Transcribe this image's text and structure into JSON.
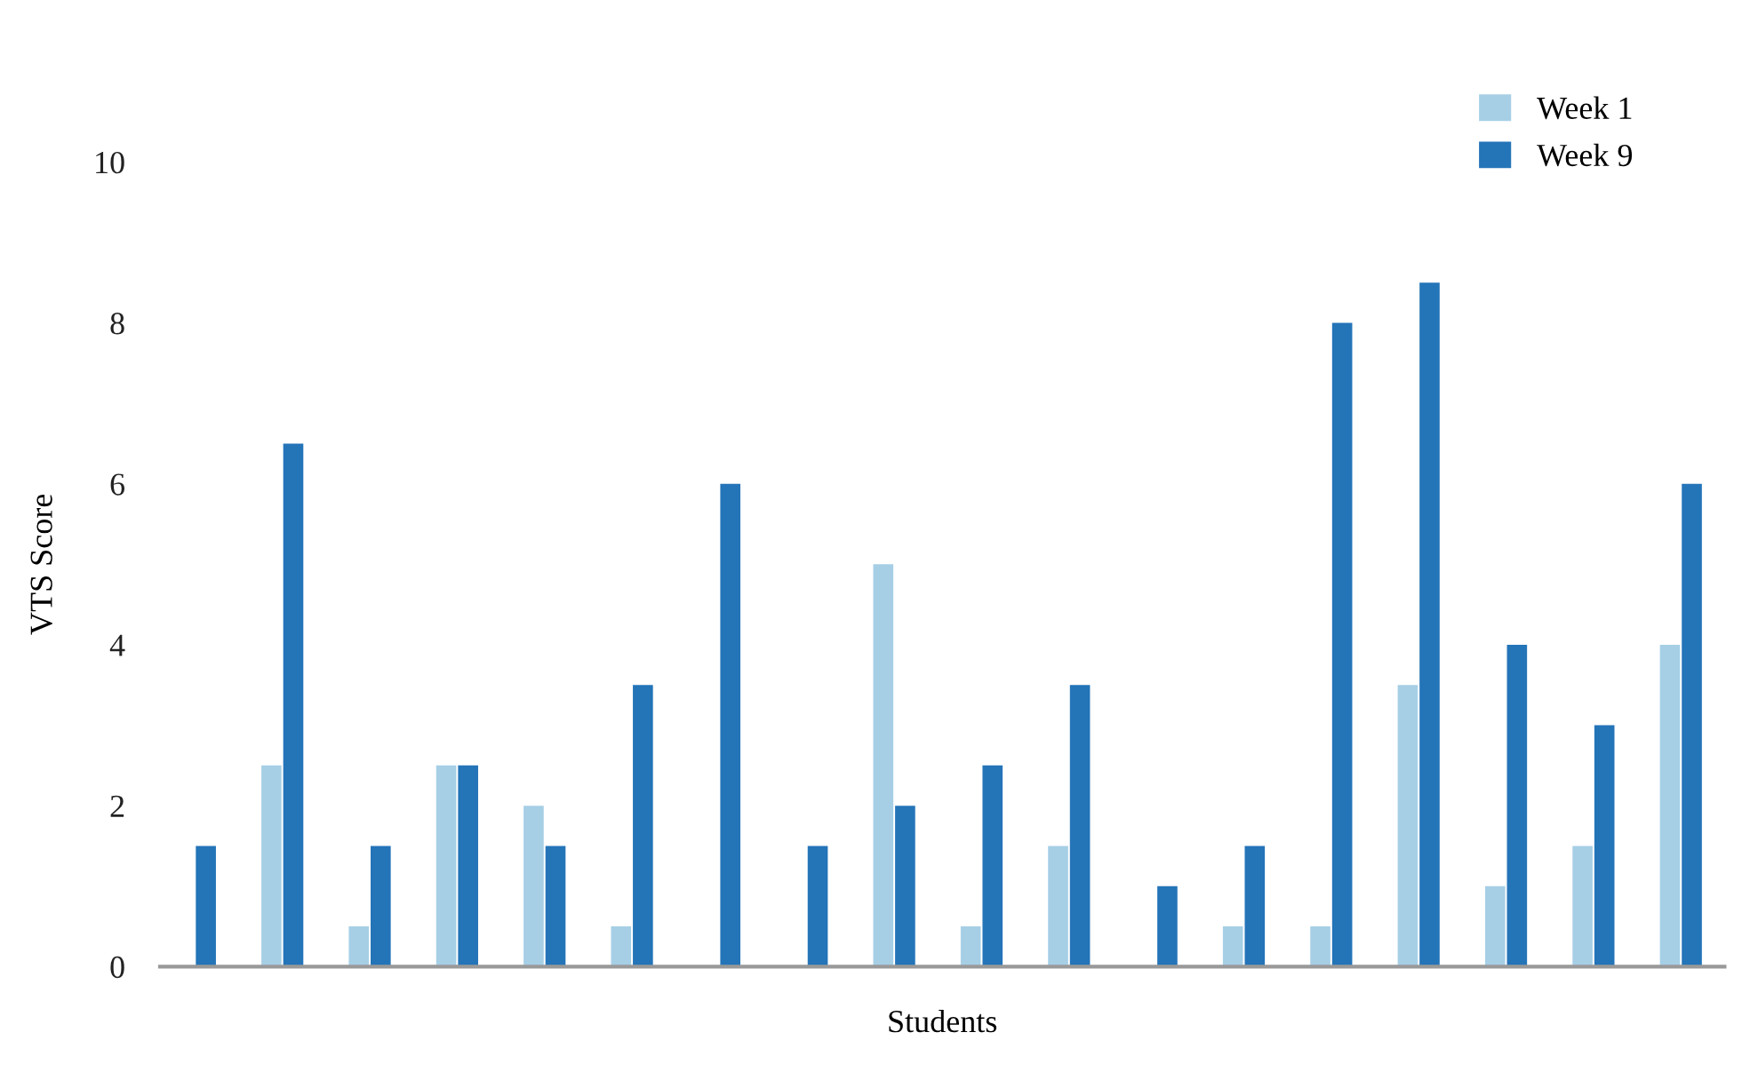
{
  "chart_data": {
    "type": "bar",
    "xlabel": "Students",
    "ylabel": "VTS Score",
    "categories": [
      null,
      null,
      null,
      null,
      null,
      null,
      null,
      null,
      null,
      null,
      null,
      null,
      null,
      null,
      null,
      null,
      null,
      null
    ],
    "series": [
      {
        "name": "Week 1",
        "color": "#a6cfe6",
        "values": [
          0,
          2.5,
          0.5,
          2.5,
          2,
          0.5,
          0,
          0,
          5,
          0.5,
          1.5,
          0,
          0.5,
          0.5,
          3.5,
          1,
          1.5,
          4
        ]
      },
      {
        "name": "Week 9",
        "color": "#2474b8",
        "values": [
          1.5,
          6.5,
          1.5,
          2.5,
          1.5,
          3.5,
          6,
          1.5,
          2,
          2.5,
          3.5,
          1,
          1.5,
          8,
          8.5,
          4,
          3,
          6
        ]
      }
    ],
    "ylim": [
      0,
      10
    ],
    "yticks": [
      0,
      2,
      4,
      6,
      8,
      10
    ],
    "grid": false,
    "legend": "top right"
  }
}
